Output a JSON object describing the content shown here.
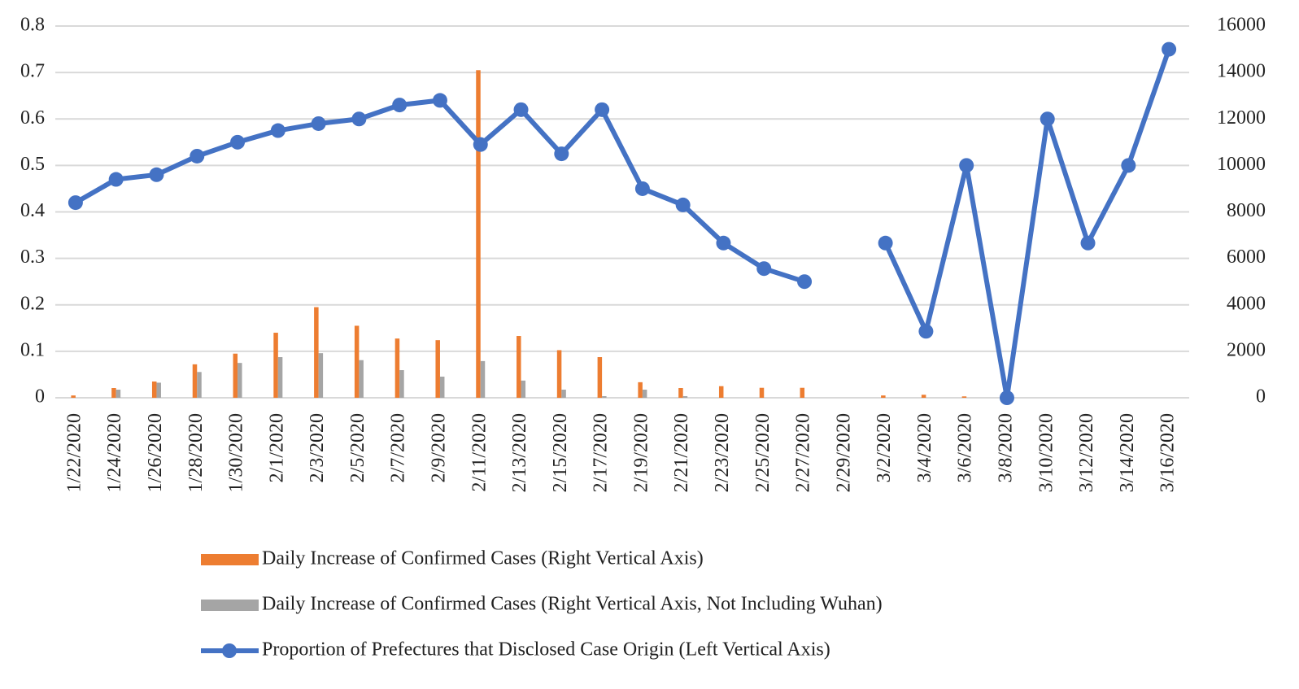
{
  "chart_data": {
    "type": "combo",
    "categories": [
      "1/22/2020",
      "1/24/2020",
      "1/26/2020",
      "1/28/2020",
      "1/30/2020",
      "2/1/2020",
      "2/3/2020",
      "2/5/2020",
      "2/7/2020",
      "2/9/2020",
      "2/11/2020",
      "2/13/2020",
      "2/15/2020",
      "2/17/2020",
      "2/19/2020",
      "2/21/2020",
      "2/23/2020",
      "2/25/2020",
      "2/27/2020",
      "2/29/2020",
      "3/2/2020",
      "3/4/2020",
      "3/6/2020",
      "3/8/2020",
      "3/10/2020",
      "3/12/2020",
      "3/14/2020",
      "3/16/2020"
    ],
    "series": [
      {
        "name": "Daily Increase of Confirmed Cases (Right Vertical Axis)",
        "type": "bar",
        "axis": "y2",
        "color": "#ed7d31",
        "values": [
          100,
          420,
          700,
          1440,
          1900,
          2800,
          3900,
          3100,
          2550,
          2480,
          14100,
          2660,
          2050,
          1750,
          670,
          420,
          500,
          430,
          430,
          0,
          100,
          130,
          60,
          0,
          0,
          0,
          0,
          0
        ]
      },
      {
        "name": "Daily Increase of Confirmed Cases (Right Vertical Axis, Not Including Wuhan)",
        "type": "bar",
        "axis": "y2",
        "color": "#a5a5a5",
        "values": [
          0,
          350,
          650,
          1110,
          1500,
          1750,
          1920,
          1620,
          1190,
          910,
          1580,
          740,
          350,
          70,
          350,
          70,
          0,
          0,
          0,
          0,
          0,
          0,
          0,
          0,
          0,
          0,
          0,
          0
        ]
      },
      {
        "name": "Proportion of Prefectures that Disclosed Case Origin (Left Vertical Axis)",
        "type": "line",
        "color": "#4472c4",
        "values": [
          0.42,
          0.47,
          0.48,
          0.52,
          0.55,
          0.575,
          0.59,
          0.6,
          0.63,
          0.64,
          0.545,
          0.62,
          0.525,
          0.62,
          0.45,
          0.415,
          0.333,
          0.278,
          0.25,
          null,
          0.333,
          0.143,
          0.5,
          0,
          0.6,
          0.333,
          0.5,
          0.75
        ]
      }
    ],
    "ylim": [
      0,
      0.8
    ],
    "yticks": [
      0,
      0.1,
      0.2,
      0.3,
      0.4,
      0.5,
      0.6,
      0.7,
      0.8
    ],
    "y2lim": [
      0,
      16000
    ],
    "y2ticks": [
      0,
      2000,
      4000,
      6000,
      8000,
      10000,
      12000,
      14000,
      16000
    ],
    "grid": true
  }
}
